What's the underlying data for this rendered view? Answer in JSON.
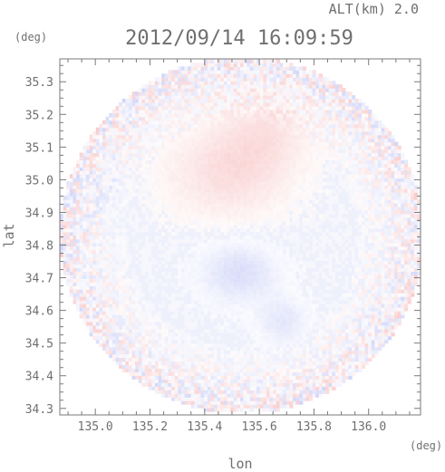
{
  "header": {
    "altitude_label": "ALT(km) 2.0",
    "timestamp": "2012/09/14 16:09:59"
  },
  "chart_data": {
    "type": "heatmap",
    "title": "2012/09/14 16:09:59",
    "xlabel": "lon",
    "ylabel": "lat",
    "x_unit": "(deg)",
    "y_unit": "(deg)",
    "xlim": [
      134.87,
      136.19
    ],
    "ylim": [
      34.28,
      35.37
    ],
    "x_ticks": [
      135.0,
      135.2,
      135.4,
      135.6,
      135.8,
      136.0
    ],
    "x_tick_labels": [
      "135.0",
      "135.2",
      "135.4",
      "135.6",
      "135.8",
      "136.0"
    ],
    "y_ticks": [
      34.3,
      34.4,
      34.5,
      34.6,
      34.7,
      34.8,
      34.9,
      35.0,
      35.1,
      35.2,
      35.3
    ],
    "y_tick_labels": [
      "34.3",
      "34.4",
      "34.5",
      "34.6",
      "34.7",
      "34.8",
      "34.9",
      "35.0",
      "35.1",
      "35.2",
      "35.3"
    ],
    "grid": false,
    "domain": {
      "shape": "circle",
      "center": [
        135.53,
        34.825
      ],
      "radius_lon": 0.665,
      "radius_lat": 0.545
    },
    "colors": {
      "positive": "#f4a3a3",
      "negative": "#a7b0f2",
      "neutral": "#eef0fb",
      "axis": "#7a7a7a",
      "text": "#6f6f6f"
    },
    "regions": [
      {
        "sign": "positive",
        "center": [
          135.48,
          35.02
        ],
        "spread": [
          0.22,
          0.14
        ],
        "strength": 0.35
      },
      {
        "sign": "positive",
        "center": [
          135.62,
          35.15
        ],
        "spread": [
          0.16,
          0.12
        ],
        "strength": 0.25
      },
      {
        "sign": "negative",
        "center": [
          135.52,
          34.71
        ],
        "spread": [
          0.14,
          0.09
        ],
        "strength": 0.4
      },
      {
        "sign": "negative",
        "center": [
          135.68,
          34.56
        ],
        "spread": [
          0.09,
          0.07
        ],
        "strength": 0.3
      },
      {
        "sign": "negative",
        "center": [
          135.05,
          34.96
        ],
        "spread": [
          0.05,
          0.09
        ],
        "strength": 0.15
      }
    ],
    "edge_noise": {
      "start_fraction": 0.6,
      "amplitude": 0.55
    }
  }
}
